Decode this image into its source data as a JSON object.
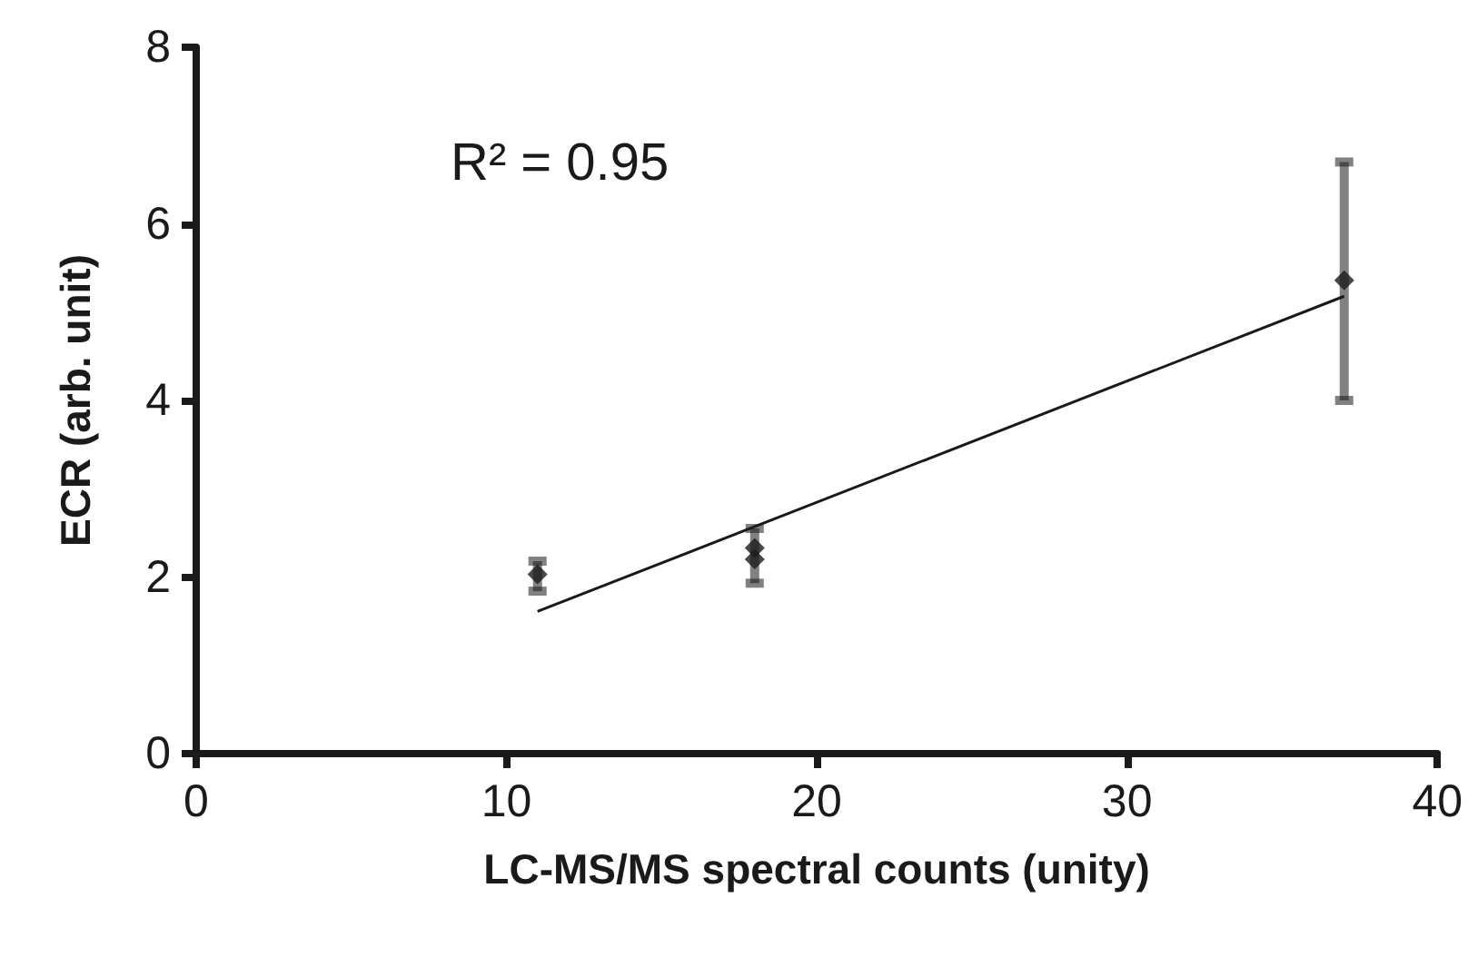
{
  "chart_data": {
    "type": "scatter",
    "xlabel": "LC-MS/MS spectral counts (unity)",
    "ylabel": "ECR (arb. unit)",
    "xlim": [
      0,
      40
    ],
    "xticks": [
      0,
      10,
      20,
      30,
      40
    ],
    "ylim": [
      0,
      8
    ],
    "yticks": [
      0,
      2,
      4,
      6,
      8
    ],
    "grid": false,
    "annotations": [
      "R² = 0.95"
    ],
    "series": [
      {
        "color": "#1a1a1a",
        "marker": "diamond",
        "x": [
          11,
          18,
          18,
          37
        ],
        "values": [
          2.03,
          2.33,
          2.2,
          5.36
        ],
        "errors": [
          [
            1.84,
            2.18
          ],
          [
            1.93,
            2.55
          ],
          null,
          [
            4.0,
            6.7
          ]
        ]
      },
      {
        "type": "line",
        "color": "#1a1a1a",
        "marker": "none",
        "x": [
          11,
          37
        ],
        "values": [
          1.61,
          5.18
        ]
      }
    ]
  }
}
